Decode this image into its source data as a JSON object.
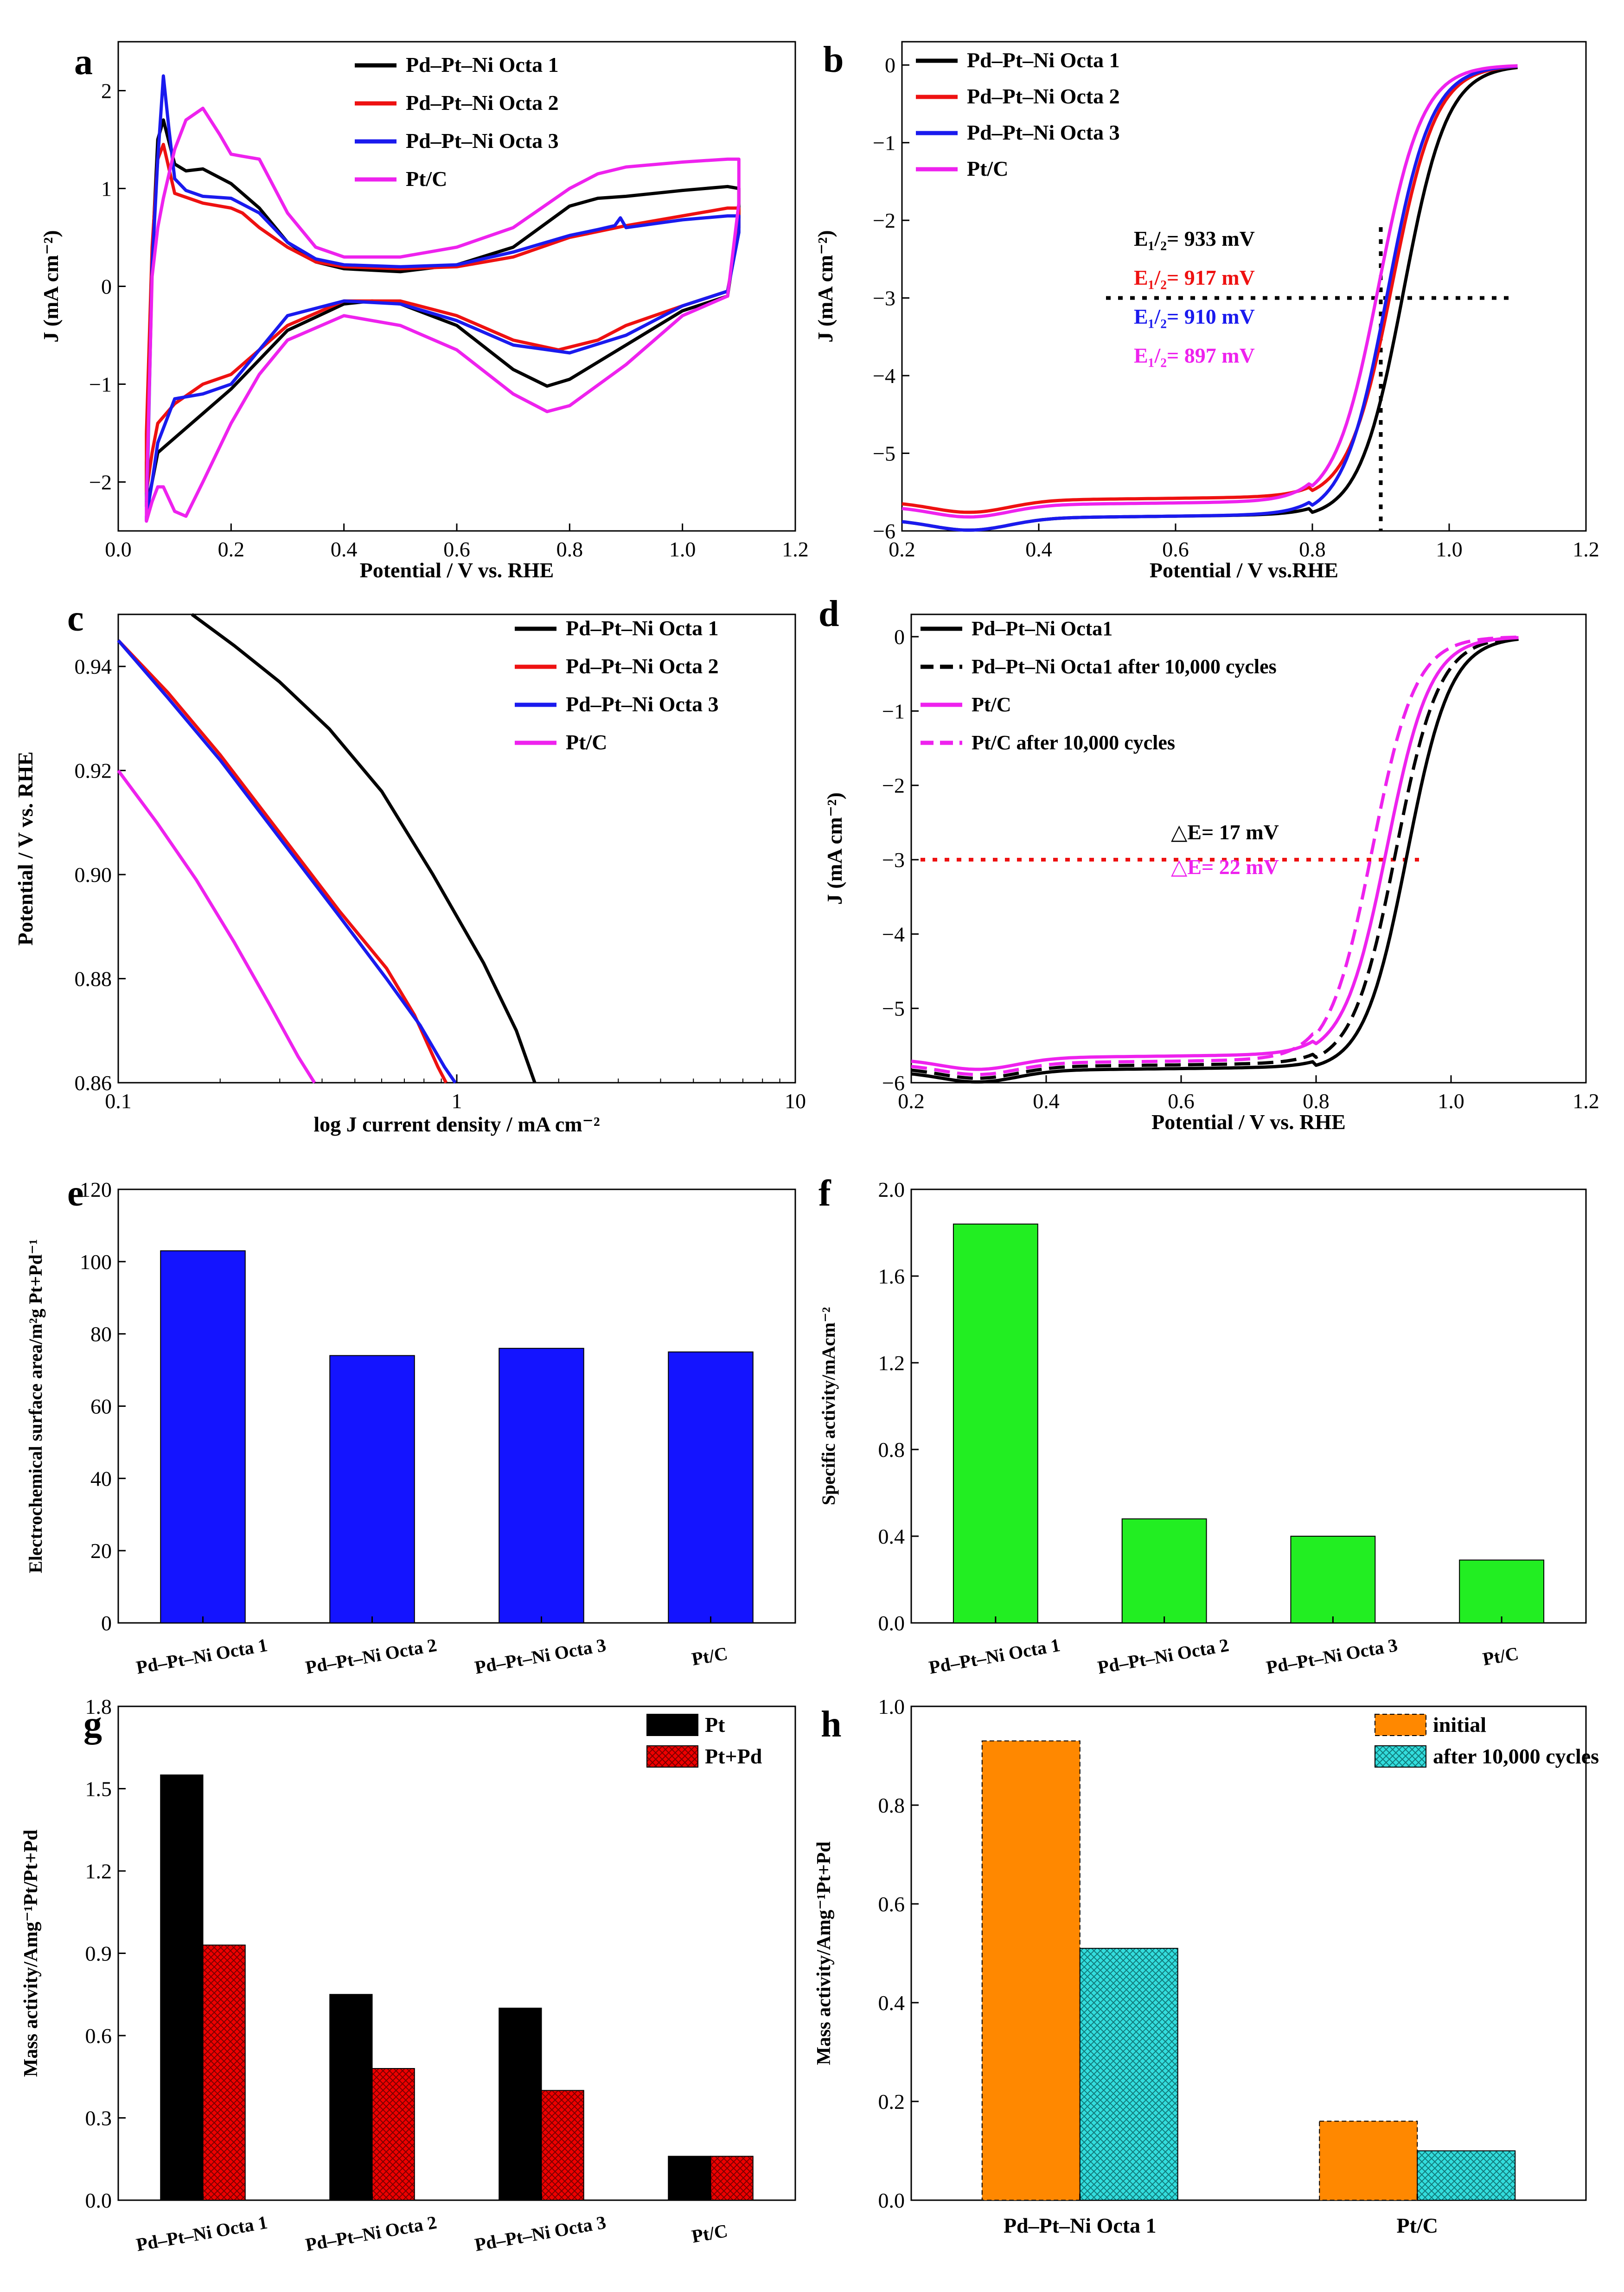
{
  "colors": {
    "black": "#000000",
    "red": "#ee1111",
    "blue": "#1a1aee",
    "magenta": "#ee22ee",
    "bar_blue": "#1414ff",
    "bar_green": "#22ee22",
    "bar_red": "#ee0000",
    "bar_orange": "#ff8800",
    "bar_cyan": "#33dddd",
    "ref_red": "#ee1111"
  },
  "chart_data": [
    {
      "panel": "a",
      "type": "line",
      "xlabel": "Potential / V vs. RHE",
      "ylabel": "J (mA cm⁻²)",
      "xlim": [
        0.0,
        1.2
      ],
      "ylim": [
        -2.5,
        2.5
      ],
      "xticks": [
        "0.0",
        "0.2",
        "0.4",
        "0.6",
        "0.8",
        "1.0",
        "1.2"
      ],
      "yticks": [
        "−2",
        "−1",
        "0",
        "1",
        "2"
      ],
      "legend": [
        "Pd–Pt–Ni Octa 1",
        "Pd–Pt–Ni Octa 2",
        "Pd–Pt–Ni Octa 3",
        "Pt/C"
      ],
      "series": [
        {
          "name": "Pd–Pt–Ni Octa 1",
          "color": "black",
          "x": [
            0.05,
            0.06,
            0.07,
            0.08,
            0.1,
            0.12,
            0.15,
            0.2,
            0.25,
            0.3,
            0.35,
            0.4,
            0.5,
            0.6,
            0.7,
            0.8,
            0.85,
            0.9,
            1.0,
            1.08,
            1.1,
            1.1,
            1.08,
            1.0,
            0.9,
            0.8,
            0.76,
            0.7,
            0.6,
            0.5,
            0.45,
            0.4,
            0.3,
            0.25,
            0.2,
            0.15,
            0.1,
            0.08,
            0.07,
            0.06,
            0.05
          ],
          "y": [
            -1.8,
            0.3,
            1.5,
            1.7,
            1.25,
            1.18,
            1.2,
            1.05,
            0.8,
            0.45,
            0.25,
            0.18,
            0.15,
            0.22,
            0.4,
            0.82,
            0.9,
            0.92,
            0.98,
            1.02,
            1.0,
            0.7,
            -0.1,
            -0.25,
            -0.6,
            -0.95,
            -1.02,
            -0.85,
            -0.4,
            -0.18,
            -0.15,
            -0.18,
            -0.45,
            -0.75,
            -1.05,
            -1.3,
            -1.55,
            -1.65,
            -1.7,
            -2.0,
            -2.25
          ]
        },
        {
          "name": "Pd–Pt–Ni Octa 2",
          "color": "red",
          "x": [
            0.05,
            0.06,
            0.07,
            0.08,
            0.1,
            0.15,
            0.2,
            0.22,
            0.25,
            0.3,
            0.35,
            0.4,
            0.5,
            0.6,
            0.7,
            0.8,
            0.9,
            1.0,
            1.08,
            1.1,
            1.1,
            1.08,
            1.0,
            0.9,
            0.85,
            0.78,
            0.7,
            0.6,
            0.5,
            0.4,
            0.3,
            0.25,
            0.2,
            0.15,
            0.1,
            0.07,
            0.06,
            0.05
          ],
          "y": [
            -1.5,
            0.4,
            1.3,
            1.45,
            0.95,
            0.85,
            0.8,
            0.75,
            0.6,
            0.4,
            0.25,
            0.2,
            0.18,
            0.2,
            0.3,
            0.5,
            0.62,
            0.72,
            0.8,
            0.8,
            0.6,
            -0.05,
            -0.2,
            -0.4,
            -0.55,
            -0.65,
            -0.55,
            -0.3,
            -0.15,
            -0.15,
            -0.4,
            -0.65,
            -0.9,
            -1.0,
            -1.2,
            -1.4,
            -1.7,
            -2.1
          ]
        },
        {
          "name": "Pd–Pt–Ni Octa 3",
          "color": "blue",
          "x": [
            0.05,
            0.06,
            0.07,
            0.08,
            0.09,
            0.1,
            0.12,
            0.15,
            0.2,
            0.25,
            0.3,
            0.35,
            0.4,
            0.5,
            0.6,
            0.7,
            0.8,
            0.85,
            0.88,
            0.89,
            0.9,
            1.0,
            1.08,
            1.1,
            1.1,
            1.08,
            1.0,
            0.9,
            0.8,
            0.7,
            0.6,
            0.5,
            0.4,
            0.3,
            0.25,
            0.2,
            0.15,
            0.1,
            0.07,
            0.06,
            0.05
          ],
          "y": [
            -2.4,
            0.2,
            1.3,
            2.15,
            1.6,
            1.1,
            0.98,
            0.92,
            0.9,
            0.75,
            0.45,
            0.28,
            0.22,
            0.2,
            0.22,
            0.35,
            0.52,
            0.58,
            0.62,
            0.7,
            0.6,
            0.68,
            0.72,
            0.72,
            0.55,
            -0.05,
            -0.2,
            -0.5,
            -0.68,
            -0.6,
            -0.35,
            -0.18,
            -0.15,
            -0.3,
            -0.65,
            -1.0,
            -1.1,
            -1.15,
            -1.6,
            -2.0,
            -2.35
          ]
        },
        {
          "name": "Pt/C",
          "color": "magenta",
          "x": [
            0.05,
            0.06,
            0.07,
            0.08,
            0.1,
            0.12,
            0.15,
            0.18,
            0.2,
            0.22,
            0.25,
            0.3,
            0.35,
            0.4,
            0.5,
            0.6,
            0.7,
            0.8,
            0.85,
            0.9,
            1.0,
            1.08,
            1.1,
            1.1,
            1.08,
            1.0,
            0.9,
            0.8,
            0.76,
            0.7,
            0.6,
            0.5,
            0.4,
            0.3,
            0.25,
            0.2,
            0.15,
            0.12,
            0.1,
            0.08,
            0.07,
            0.06,
            0.05
          ],
          "y": [
            -2.2,
            0.1,
            0.6,
            0.9,
            1.4,
            1.7,
            1.82,
            1.55,
            1.35,
            1.33,
            1.3,
            0.75,
            0.4,
            0.3,
            0.3,
            0.4,
            0.6,
            1.0,
            1.15,
            1.22,
            1.27,
            1.3,
            1.3,
            0.85,
            -0.1,
            -0.3,
            -0.8,
            -1.22,
            -1.28,
            -1.1,
            -0.65,
            -0.4,
            -0.3,
            -0.55,
            -0.9,
            -1.4,
            -2.0,
            -2.35,
            -2.3,
            -2.05,
            -2.05,
            -2.2,
            -2.4
          ]
        }
      ]
    },
    {
      "panel": "b",
      "type": "line",
      "xlabel": "Potential / V vs.RHE",
      "ylabel": "J (mA cm⁻²)",
      "xlim": [
        0.2,
        1.2
      ],
      "ylim": [
        -6.0,
        0.3
      ],
      "xticks": [
        "0.2",
        "0.4",
        "0.6",
        "0.8",
        "1.0",
        "1.2"
      ],
      "yticks": [
        "0",
        "−1",
        "−2",
        "−3",
        "−4",
        "−5",
        "−6"
      ],
      "legend": [
        "Pd–Pt–Ni Octa 1",
        "Pd–Pt–Ni Octa 2",
        "Pd–Pt–Ni Octa 3",
        "Pt/C"
      ],
      "annotations": [
        {
          "text": "E₁/₂= 933 mV",
          "color": "black"
        },
        {
          "text": "E₁/₂= 917 mV",
          "color": "red"
        },
        {
          "text": "E₁/₂= 910 mV",
          "color": "blue"
        },
        {
          "text": "E₁/₂= 897 mV",
          "color": "magenta"
        }
      ],
      "reference_lines": {
        "y": -3.0,
        "x": 0.9
      },
      "series": [
        {
          "name": "Pd–Pt–Ni Octa 1",
          "color": "black",
          "half_wave": 0.933,
          "plateau": -5.85
        },
        {
          "name": "Pd–Pt–Ni Octa 2",
          "color": "red",
          "half_wave": 0.917,
          "plateau": -5.62
        },
        {
          "name": "Pd–Pt–Ni Octa 3",
          "color": "blue",
          "half_wave": 0.91,
          "plateau": -5.85
        },
        {
          "name": "Pt/C",
          "color": "magenta",
          "half_wave": 0.897,
          "plateau": -5.68
        }
      ]
    },
    {
      "panel": "c",
      "type": "line",
      "xlabel": "log J current density / mA cm⁻²",
      "ylabel": "Potential / V vs. RHE",
      "xscale": "log",
      "xlim": [
        0.1,
        10
      ],
      "ylim": [
        0.86,
        0.95
      ],
      "xticks": [
        "0.1",
        "1",
        "10"
      ],
      "yticks": [
        "0.86",
        "0.88",
        "0.90",
        "0.92",
        "0.94"
      ],
      "legend": [
        "Pd–Pt–Ni Octa 1",
        "Pd–Pt–Ni Octa 2",
        "Pd–Pt–Ni Octa 3",
        "Pt/C"
      ],
      "series": [
        {
          "name": "Pd–Pt–Ni Octa 1",
          "color": "black",
          "x": [
            0.165,
            0.22,
            0.3,
            0.42,
            0.6,
            0.85,
            1.2,
            1.5,
            1.7
          ],
          "y": [
            0.95,
            0.944,
            0.937,
            0.928,
            0.916,
            0.9,
            0.883,
            0.87,
            0.86
          ]
        },
        {
          "name": "Pd–Pt–Ni Octa 2",
          "color": "red",
          "x": [
            0.1,
            0.14,
            0.2,
            0.3,
            0.45,
            0.62,
            0.75,
            0.88,
            0.93
          ],
          "y": [
            0.945,
            0.935,
            0.923,
            0.908,
            0.893,
            0.882,
            0.873,
            0.863,
            0.86
          ]
        },
        {
          "name": "Pd–Pt–Ni Octa 3",
          "color": "blue",
          "x": [
            0.1,
            0.14,
            0.2,
            0.3,
            0.45,
            0.62,
            0.78,
            0.92,
            0.99
          ],
          "y": [
            0.945,
            0.934,
            0.922,
            0.907,
            0.892,
            0.88,
            0.871,
            0.863,
            0.86
          ]
        },
        {
          "name": "Pt/C",
          "color": "magenta",
          "x": [
            0.1,
            0.13,
            0.17,
            0.22,
            0.28,
            0.34,
            0.38
          ],
          "y": [
            0.92,
            0.91,
            0.899,
            0.887,
            0.875,
            0.865,
            0.86
          ]
        }
      ]
    },
    {
      "panel": "d",
      "type": "line",
      "xlabel": "Potential / V vs. RHE",
      "ylabel": "J (mA cm⁻²)",
      "xlim": [
        0.2,
        1.2
      ],
      "ylim": [
        -6.0,
        0.3
      ],
      "xticks": [
        "0.2",
        "0.4",
        "0.6",
        "0.8",
        "1.0",
        "1.2"
      ],
      "yticks": [
        "0",
        "−1",
        "−2",
        "−3",
        "−4",
        "−5",
        "−6"
      ],
      "legend": [
        "Pd–Pt–Ni Octa1",
        "Pd–Pt–Ni Octa1 after 10,000 cycles",
        "Pt/C",
        "Pt/C after 10,000 cycles"
      ],
      "annotations": [
        {
          "text": "△E= 17 mV",
          "color": "black"
        },
        {
          "text": "△E= 22 mV",
          "color": "magenta"
        }
      ],
      "reference_lines": {
        "y": -3.0
      },
      "series": [
        {
          "name": "Pd–Pt–Ni Octa1",
          "color": "black",
          "dash": false,
          "half_wave": 0.935,
          "plateau": -5.85
        },
        {
          "name": "Pd–Pt–Ni Octa1 after 10,000 cycles",
          "color": "black",
          "dash": true,
          "half_wave": 0.918,
          "plateau": -5.8
        },
        {
          "name": "Pt/C",
          "color": "magenta",
          "dash": false,
          "half_wave": 0.905,
          "plateau": -5.68
        },
        {
          "name": "Pt/C after 10,000 cycles",
          "color": "magenta",
          "dash": true,
          "half_wave": 0.883,
          "plateau": -5.75
        }
      ]
    },
    {
      "panel": "e",
      "type": "bar",
      "ylabel": "Electrochemical surface area/m²g Pt+Pd⁻¹",
      "ylim": [
        0,
        120
      ],
      "yticks": [
        "0",
        "20",
        "40",
        "60",
        "80",
        "100",
        "120"
      ],
      "categories": [
        "Pd–Pt–Ni Octa 1",
        "Pd–Pt–Ni Octa 2",
        "Pd–Pt–Ni Octa 3",
        "Pt/C"
      ],
      "values": [
        103,
        74,
        76,
        75
      ],
      "color": "bar_blue"
    },
    {
      "panel": "f",
      "type": "bar",
      "ylabel": "Specific activity/mAcm⁻²",
      "ylim": [
        0,
        2.0
      ],
      "yticks": [
        "0.0",
        "0.4",
        "0.8",
        "1.2",
        "1.6",
        "2.0"
      ],
      "categories": [
        "Pd–Pt–Ni Octa 1",
        "Pd–Pt–Ni Octa 2",
        "Pd–Pt–Ni Octa 3",
        "Pt/C"
      ],
      "values": [
        1.84,
        0.48,
        0.4,
        0.29
      ],
      "color": "bar_green"
    },
    {
      "panel": "g",
      "type": "bar",
      "ylabel": "Mass activity/Amg⁻¹Pt/Pt+Pd",
      "ylim": [
        0,
        1.8
      ],
      "yticks": [
        "0.0",
        "0.3",
        "0.6",
        "0.9",
        "1.2",
        "1.5",
        "1.8"
      ],
      "categories": [
        "Pd–Pt–Ni Octa 1",
        "Pd–Pt–Ni Octa 2",
        "Pd–Pt–Ni Octa 3",
        "Pt/C"
      ],
      "series": [
        {
          "name": "Pt",
          "values": [
            1.55,
            0.75,
            0.7,
            0.16
          ],
          "color": "black"
        },
        {
          "name": "Pt+Pd",
          "values": [
            0.93,
            0.48,
            0.4,
            0.16
          ],
          "color": "bar_red"
        }
      ]
    },
    {
      "panel": "h",
      "type": "bar",
      "ylabel": "Mass activity/Amg⁻¹Pt+Pd",
      "ylim": [
        0,
        1.0
      ],
      "yticks": [
        "0.0",
        "0.2",
        "0.4",
        "0.6",
        "0.8",
        "1.0"
      ],
      "categories": [
        "Pd–Pt–Ni Octa 1",
        "Pt/C"
      ],
      "series": [
        {
          "name": "initial",
          "values": [
            0.93,
            0.16
          ],
          "color": "bar_orange"
        },
        {
          "name": "after 10,000 cycles",
          "values": [
            0.51,
            0.1
          ],
          "color": "bar_cyan"
        }
      ]
    }
  ]
}
